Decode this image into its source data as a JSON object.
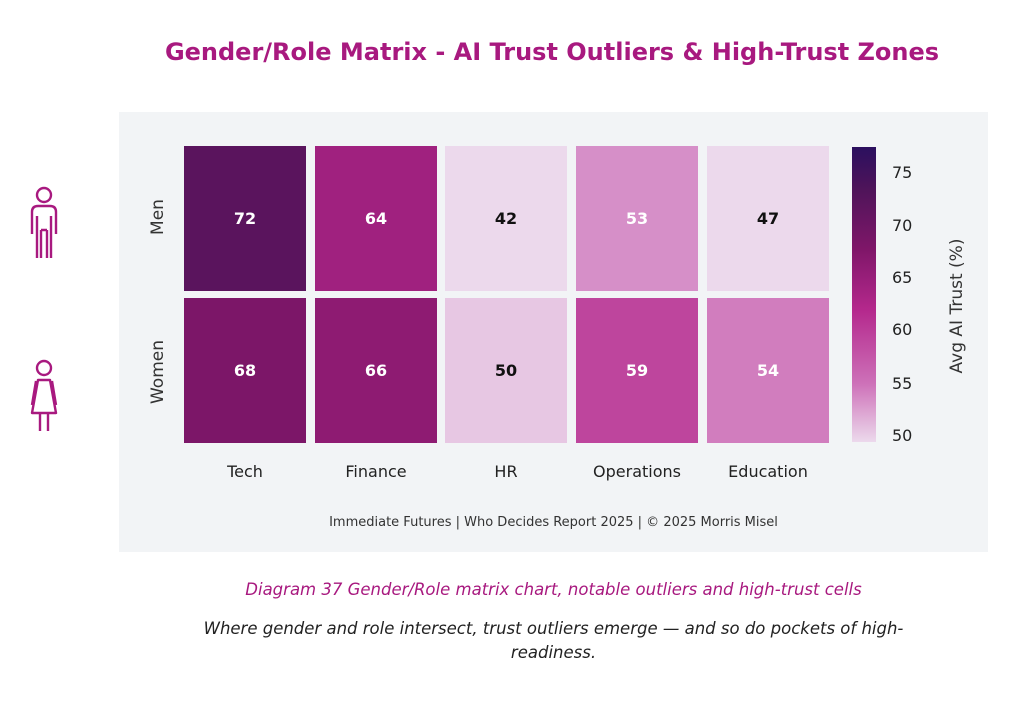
{
  "title": "Gender/Role Matrix - AI Trust Outliers & High-Trust Zones",
  "colors": {
    "title": "#a8197f",
    "panel_bg": "#f2f4f6",
    "scale_low": "#ecd9ec",
    "scale_high": "#2b0f5e"
  },
  "icons": {
    "men": "man-icon",
    "women": "woman-icon"
  },
  "chart_data": {
    "type": "heatmap",
    "rows": [
      "Men",
      "Women"
    ],
    "columns": [
      "Tech",
      "Finance",
      "HR",
      "Operations",
      "Education"
    ],
    "values": [
      [
        72,
        64,
        42,
        53,
        47
      ],
      [
        68,
        66,
        50,
        59,
        54
      ]
    ],
    "colorbar": {
      "label": "Avg AI Trust (%)",
      "range": [
        49,
        77.5
      ],
      "ticks": [
        "75",
        "70",
        "65",
        "60",
        "55",
        "50"
      ]
    }
  },
  "footer": "Immediate Futures  |  Who Decides Report 2025  | © 2025 Morris Misel",
  "caption": "Diagram 37 Gender/Role matrix chart, notable outliers and high-trust cells",
  "subcaption": "Where gender and role intersect, trust outliers emerge — and so do pockets of high-readiness."
}
